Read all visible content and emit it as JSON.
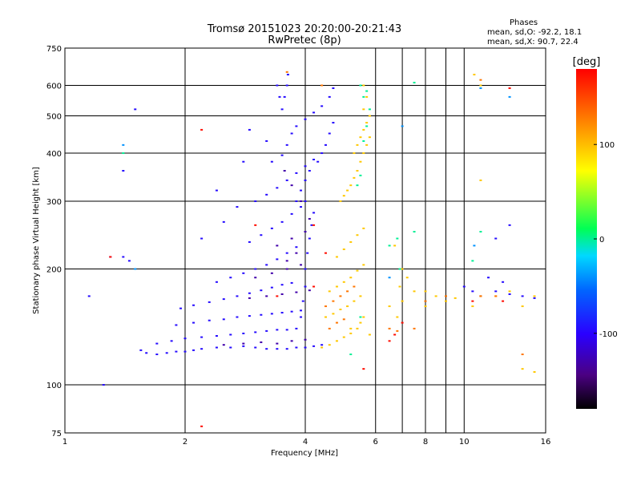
{
  "chart_data": {
    "type": "scatter",
    "title": "Tromsø 20151023 20:20:00-20:21:43",
    "subtitle": "RwPretec (8p)",
    "xlabel": "Frequency [MHz]",
    "ylabel": "Stationary phase Virtual Height [km]",
    "x_scale": "log",
    "y_scale": "log",
    "xlim": [
      1,
      16
    ],
    "ylim": [
      75,
      750
    ],
    "xticks": [
      1,
      2,
      4,
      6,
      8,
      10,
      16
    ],
    "yticks": [
      75,
      100,
      200,
      300,
      400,
      500,
      600,
      750
    ],
    "x_minor_grid": [
      7,
      9
    ],
    "grid": true,
    "phases_box": {
      "title": "Phases",
      "line_o": "mean, sd,O: -92.2, 18.1",
      "line_x": "mean, sd,X:  90.7, 22.4"
    },
    "colorbar": {
      "label": "[deg]",
      "ticks": [
        100,
        0,
        -100
      ],
      "range": [
        -180,
        180
      ],
      "scale": "rainbow: black (-180) → purple → blue → cyan → green → yellow → orange → red (180)"
    },
    "series": [
      {
        "color_phase": -95,
        "points": [
          [
            1.55,
            123
          ],
          [
            1.6,
            121
          ],
          [
            1.7,
            120
          ],
          [
            1.8,
            121
          ],
          [
            1.9,
            122
          ],
          [
            2.0,
            122
          ],
          [
            2.1,
            123
          ],
          [
            2.2,
            124
          ],
          [
            2.4,
            125
          ],
          [
            2.6,
            125
          ],
          [
            2.8,
            126
          ],
          [
            3.0,
            125
          ],
          [
            3.2,
            124
          ],
          [
            3.4,
            124
          ],
          [
            3.6,
            124
          ],
          [
            3.8,
            125
          ],
          [
            4.0,
            125
          ],
          [
            4.2,
            126
          ],
          [
            4.4,
            127
          ],
          [
            1.7,
            128
          ],
          [
            1.85,
            130
          ],
          [
            2.0,
            132
          ],
          [
            2.2,
            133
          ],
          [
            2.4,
            134
          ],
          [
            2.6,
            135
          ],
          [
            2.8,
            136
          ],
          [
            3.0,
            137
          ],
          [
            3.2,
            138
          ],
          [
            3.4,
            139
          ],
          [
            3.6,
            139
          ],
          [
            3.8,
            140
          ],
          [
            1.9,
            143
          ],
          [
            2.1,
            145
          ],
          [
            2.3,
            147
          ],
          [
            2.5,
            148
          ],
          [
            2.7,
            150
          ],
          [
            2.9,
            151
          ],
          [
            3.1,
            152
          ],
          [
            3.3,
            153
          ],
          [
            3.5,
            154
          ],
          [
            3.7,
            155
          ],
          [
            3.9,
            156
          ],
          [
            1.95,
            158
          ],
          [
            2.1,
            161
          ],
          [
            2.3,
            164
          ],
          [
            2.5,
            167
          ],
          [
            2.7,
            170
          ],
          [
            2.9,
            173
          ],
          [
            3.1,
            176
          ],
          [
            3.3,
            179
          ],
          [
            3.5,
            182
          ],
          [
            3.7,
            184
          ],
          [
            2.4,
            185
          ],
          [
            2.6,
            190
          ],
          [
            2.8,
            195
          ],
          [
            3.0,
            200
          ],
          [
            3.2,
            205
          ],
          [
            3.4,
            212
          ],
          [
            3.6,
            220
          ],
          [
            3.8,
            228
          ],
          [
            2.9,
            235
          ],
          [
            3.1,
            245
          ],
          [
            3.3,
            255
          ],
          [
            3.5,
            265
          ],
          [
            3.7,
            278
          ],
          [
            3.9,
            290
          ],
          [
            4.0,
            300
          ],
          [
            3.0,
            300
          ],
          [
            3.2,
            312
          ],
          [
            3.4,
            325
          ],
          [
            3.6,
            340
          ],
          [
            3.8,
            355
          ],
          [
            4.0,
            370
          ],
          [
            4.2,
            385
          ],
          [
            4.4,
            400
          ],
          [
            3.3,
            380
          ],
          [
            3.5,
            395
          ],
          [
            3.6,
            420
          ],
          [
            3.7,
            450
          ],
          [
            3.8,
            470
          ],
          [
            4.0,
            490
          ],
          [
            4.2,
            510
          ],
          [
            4.4,
            530
          ],
          [
            4.6,
            560
          ],
          [
            4.7,
            590
          ],
          [
            3.5,
            520
          ],
          [
            3.55,
            560
          ],
          [
            3.6,
            600
          ],
          [
            3.62,
            640
          ],
          [
            3.4,
            600
          ],
          [
            3.45,
            560
          ],
          [
            3.8,
            300
          ],
          [
            3.9,
            320
          ],
          [
            4.0,
            340
          ],
          [
            4.1,
            360
          ],
          [
            4.3,
            380
          ],
          [
            4.5,
            420
          ],
          [
            4.6,
            450
          ],
          [
            4.7,
            480
          ],
          [
            3.9,
            150
          ],
          [
            3.95,
            165
          ],
          [
            4.0,
            180
          ],
          [
            4.0,
            200
          ],
          [
            4.05,
            220
          ],
          [
            4.1,
            240
          ],
          [
            4.15,
            260
          ],
          [
            4.2,
            280
          ],
          [
            1.3,
            215
          ],
          [
            1.4,
            215
          ],
          [
            1.4,
            360
          ],
          [
            1.45,
            210
          ],
          [
            1.5,
            520
          ],
          [
            1.25,
            100
          ],
          [
            1.15,
            170
          ],
          [
            2.2,
            240
          ],
          [
            2.5,
            265
          ],
          [
            2.7,
            290
          ],
          [
            2.4,
            320
          ],
          [
            2.8,
            380
          ],
          [
            3.2,
            430
          ],
          [
            2.9,
            460
          ],
          [
            10.5,
            175
          ],
          [
            11,
            170
          ],
          [
            12,
            175
          ],
          [
            13,
            172
          ],
          [
            14,
            170
          ],
          [
            15,
            168
          ],
          [
            11.5,
            190
          ],
          [
            12.5,
            185
          ],
          [
            10,
            180
          ],
          [
            13,
            260
          ],
          [
            12,
            240
          ]
        ]
      },
      {
        "color_phase": -130,
        "points": [
          [
            2.5,
            127
          ],
          [
            2.8,
            128
          ],
          [
            3.1,
            129
          ],
          [
            3.4,
            128
          ],
          [
            3.7,
            130
          ],
          [
            4.0,
            131
          ],
          [
            2.9,
            168
          ],
          [
            3.2,
            170
          ],
          [
            3.5,
            172
          ],
          [
            3.8,
            174
          ],
          [
            4.1,
            176
          ],
          [
            3.0,
            190
          ],
          [
            3.3,
            195
          ],
          [
            3.6,
            200
          ],
          [
            3.9,
            205
          ],
          [
            3.4,
            230
          ],
          [
            3.7,
            240
          ],
          [
            4.0,
            250
          ],
          [
            3.6,
            210
          ],
          [
            3.8,
            220
          ],
          [
            4.1,
            270
          ],
          [
            3.9,
            300
          ],
          [
            3.7,
            330
          ],
          [
            3.55,
            360
          ]
        ]
      },
      {
        "color_phase": 95,
        "points": [
          [
            4.4,
            125
          ],
          [
            4.6,
            127
          ],
          [
            4.8,
            130
          ],
          [
            5.0,
            133
          ],
          [
            5.2,
            136
          ],
          [
            5.4,
            140
          ],
          [
            5.5,
            145
          ],
          [
            4.5,
            150
          ],
          [
            4.7,
            153
          ],
          [
            4.9,
            157
          ],
          [
            5.1,
            160
          ],
          [
            5.3,
            165
          ],
          [
            5.5,
            170
          ],
          [
            4.6,
            175
          ],
          [
            4.8,
            180
          ],
          [
            5.0,
            185
          ],
          [
            5.2,
            190
          ],
          [
            5.4,
            198
          ],
          [
            5.6,
            205
          ],
          [
            4.8,
            215
          ],
          [
            5.0,
            225
          ],
          [
            5.2,
            235
          ],
          [
            5.4,
            245
          ],
          [
            5.6,
            255
          ],
          [
            4.9,
            300
          ],
          [
            5.0,
            310
          ],
          [
            5.1,
            320
          ],
          [
            5.2,
            330
          ],
          [
            5.3,
            345
          ],
          [
            5.4,
            360
          ],
          [
            5.5,
            380
          ],
          [
            5.6,
            400
          ],
          [
            5.7,
            420
          ],
          [
            5.8,
            440
          ],
          [
            5.6,
            460
          ],
          [
            5.7,
            480
          ],
          [
            5.8,
            500
          ],
          [
            5.3,
            400
          ],
          [
            5.4,
            420
          ],
          [
            5.5,
            440
          ],
          [
            5.6,
            520
          ],
          [
            5.7,
            560
          ],
          [
            5.6,
            600
          ],
          [
            5.2,
            140
          ],
          [
            5.6,
            150
          ],
          [
            5.8,
            135
          ],
          [
            6.5,
            160
          ],
          [
            7.0,
            165
          ],
          [
            6.8,
            150
          ],
          [
            8.5,
            170
          ],
          [
            9.0,
            165
          ],
          [
            10.5,
            160
          ],
          [
            11,
            170
          ],
          [
            12,
            170
          ],
          [
            13,
            175
          ],
          [
            6.7,
            230
          ],
          [
            7.0,
            200
          ],
          [
            6.9,
            180
          ],
          [
            7.5,
            175
          ],
          [
            7.2,
            190
          ],
          [
            8.0,
            175
          ],
          [
            9.5,
            168
          ],
          [
            14,
            160
          ],
          [
            15,
            170
          ],
          [
            11,
            600
          ],
          [
            11,
            340
          ],
          [
            10.6,
            640
          ],
          [
            14,
            110
          ],
          [
            15,
            108
          ],
          [
            8.0,
            160
          ]
        ]
      },
      {
        "color_phase": 130,
        "points": [
          [
            4.5,
            160
          ],
          [
            4.7,
            165
          ],
          [
            4.9,
            170
          ],
          [
            5.1,
            175
          ],
          [
            5.3,
            180
          ],
          [
            4.6,
            140
          ],
          [
            4.8,
            145
          ],
          [
            5.0,
            148
          ],
          [
            6.5,
            140
          ],
          [
            6.8,
            138
          ],
          [
            7.5,
            140
          ],
          [
            8.0,
            165
          ],
          [
            9.0,
            170
          ],
          [
            11,
            170
          ],
          [
            12,
            170
          ],
          [
            3.6,
            650
          ],
          [
            4.4,
            600
          ],
          [
            11,
            620
          ],
          [
            14,
            120
          ]
        ]
      },
      {
        "color_phase": 175,
        "points": [
          [
            2.2,
            460
          ],
          [
            3.0,
            260
          ],
          [
            3.4,
            170
          ],
          [
            4.2,
            180
          ],
          [
            4.5,
            220
          ],
          [
            4.2,
            260
          ],
          [
            6.5,
            130
          ],
          [
            6.7,
            135
          ],
          [
            7.0,
            145
          ],
          [
            10.5,
            165
          ],
          [
            12.5,
            165
          ],
          [
            13,
            590
          ],
          [
            1.3,
            215
          ],
          [
            2.2,
            78
          ],
          [
            5.6,
            110
          ]
        ]
      },
      {
        "color_phase": 0,
        "points": [
          [
            5.4,
            330
          ],
          [
            5.5,
            350
          ],
          [
            5.6,
            430
          ],
          [
            5.7,
            470
          ],
          [
            5.8,
            520
          ],
          [
            5.7,
            580
          ],
          [
            5.5,
            600
          ],
          [
            5.6,
            560
          ],
          [
            6.5,
            230
          ],
          [
            6.8,
            240
          ],
          [
            6.9,
            200
          ],
          [
            7.5,
            250
          ],
          [
            7.5,
            610
          ],
          [
            1.4,
            400
          ],
          [
            10.5,
            210
          ],
          [
            11,
            250
          ],
          [
            5.5,
            150
          ],
          [
            5.2,
            120
          ]
        ]
      },
      {
        "color_phase": -40,
        "points": [
          [
            1.4,
            420
          ],
          [
            1.5,
            200
          ],
          [
            11,
            590
          ],
          [
            13,
            560
          ],
          [
            10.6,
            230
          ],
          [
            6.5,
            190
          ],
          [
            7.0,
            470
          ]
        ]
      }
    ]
  }
}
